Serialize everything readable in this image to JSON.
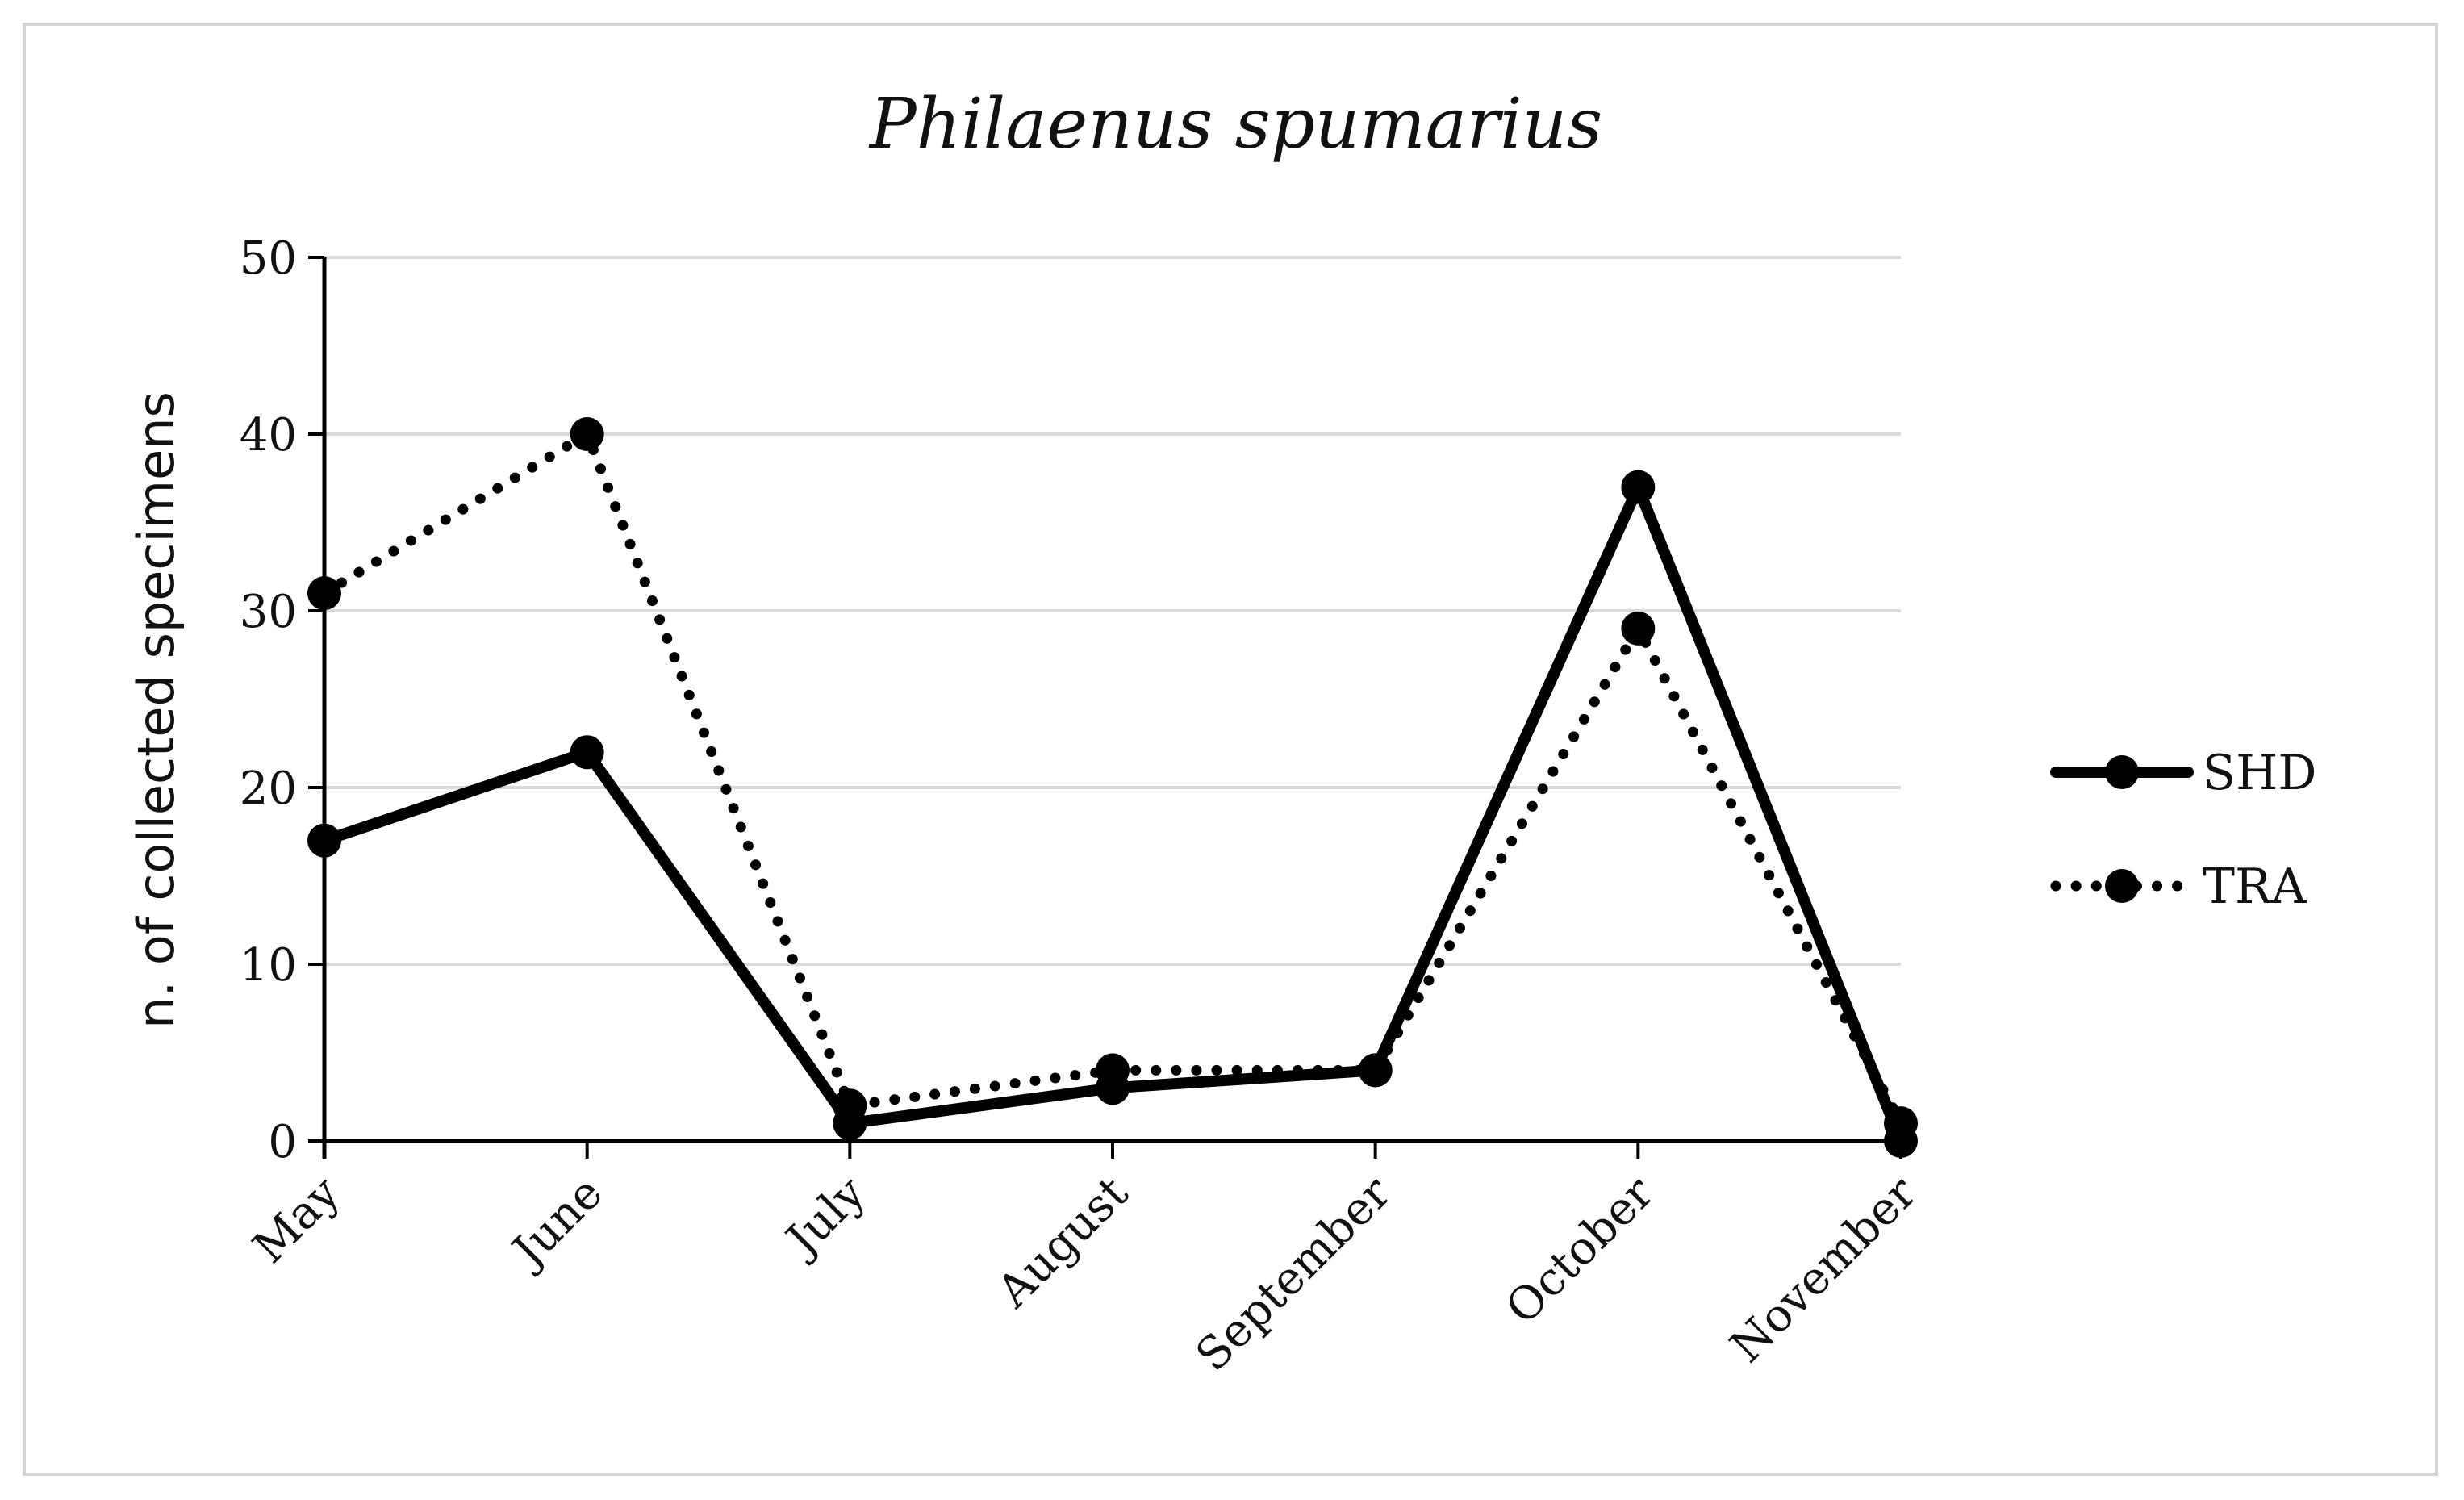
{
  "chart_data": {
    "type": "line",
    "title": "Philaenus spumarius",
    "ylabel": "n. of collected specimens",
    "xlabel": "",
    "categories": [
      "May",
      "June",
      "July",
      "August",
      "September",
      "October",
      "November"
    ],
    "ylim": [
      0,
      50
    ],
    "yticks": [
      0,
      10,
      20,
      30,
      40,
      50
    ],
    "grid": "horizontal",
    "legend_position": "right",
    "series": [
      {
        "name": "SHD",
        "values": [
          17,
          22,
          1,
          3,
          4,
          37,
          0
        ],
        "line_style": "solid",
        "color": "#000000"
      },
      {
        "name": "TRA",
        "values": [
          31,
          40,
          2,
          4,
          4,
          29,
          1
        ],
        "line_style": "dotted",
        "color": "#000000"
      }
    ]
  }
}
